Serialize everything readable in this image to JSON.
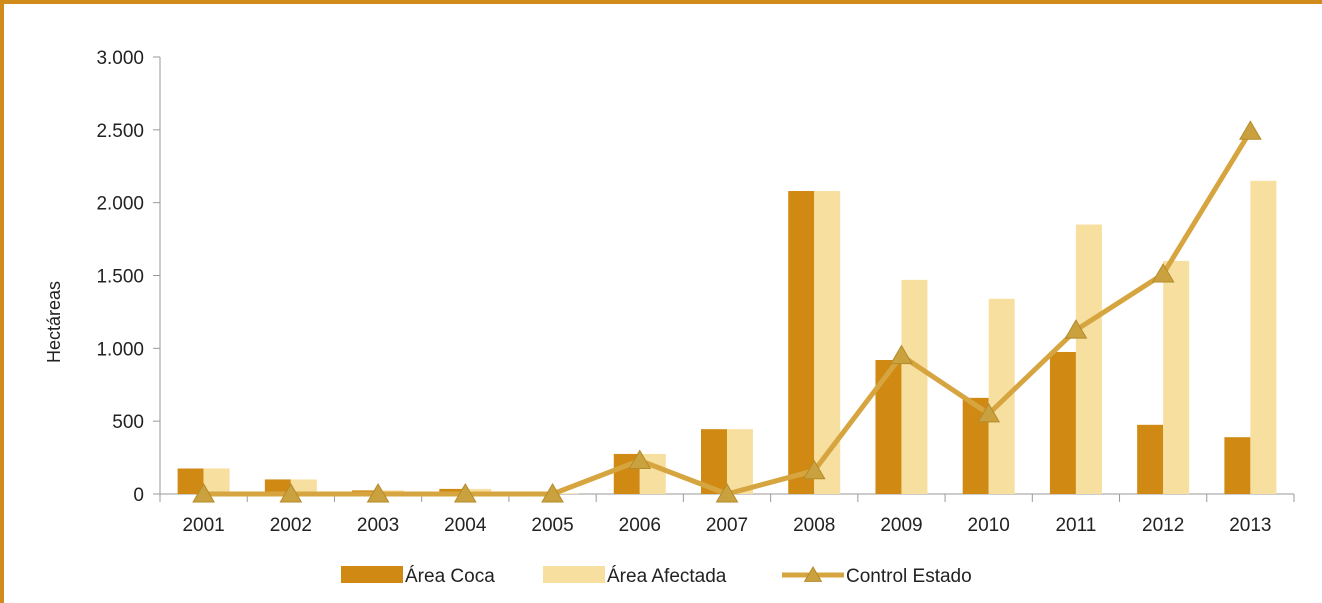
{
  "chart_data": {
    "type": "bar",
    "ylabel": "Hectáreas",
    "categories": [
      "2001",
      "2002",
      "2003",
      "2004",
      "2005",
      "2006",
      "2007",
      "2008",
      "2009",
      "2010",
      "2011",
      "2012",
      "2013"
    ],
    "ylim": [
      0,
      3000
    ],
    "yticks": [
      0,
      500,
      1000,
      1500,
      2000,
      2500,
      3000
    ],
    "ytick_labels": [
      "0",
      "500",
      "1.000",
      "1.500",
      "2.000",
      "2.500",
      "3.000"
    ],
    "series": [
      {
        "name": "Área Coca",
        "kind": "bar",
        "color": "#d08a13",
        "values": [
          175,
          100,
          25,
          35,
          5,
          275,
          445,
          2080,
          920,
          660,
          975,
          475,
          390
        ]
      },
      {
        "name": "Área Afectada",
        "kind": "bar",
        "color": "#f7dfa0",
        "values": [
          175,
          100,
          25,
          35,
          5,
          275,
          445,
          2080,
          1470,
          1340,
          1850,
          1600,
          2150
        ]
      },
      {
        "name": "Control Estado",
        "kind": "line",
        "color": "#d6a53f",
        "values": [
          0,
          0,
          0,
          0,
          0,
          230,
          0,
          160,
          950,
          550,
          1125,
          1510,
          2490
        ]
      }
    ],
    "grid": false,
    "legend_position": "bottom"
  }
}
